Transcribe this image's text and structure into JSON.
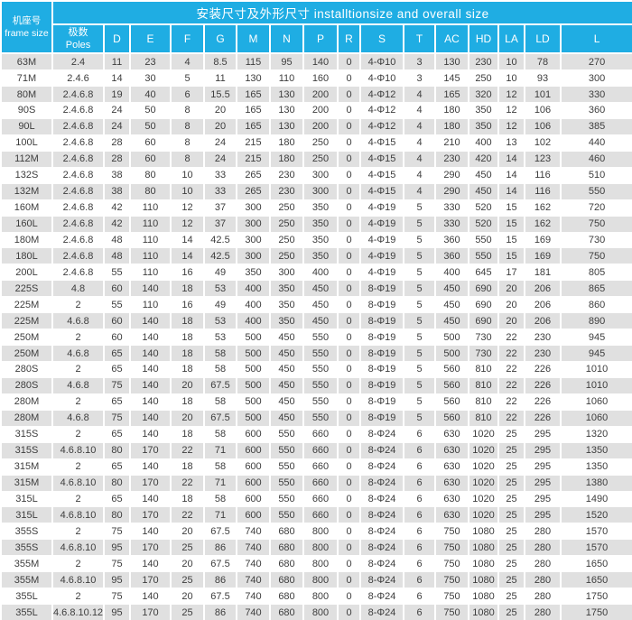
{
  "table": {
    "title": "安装尺寸及外形尺寸 installtionsize and overall size",
    "frame_header_cn": "机座号",
    "frame_header_en": "frame size",
    "poles_header_cn": "极数",
    "poles_header_en": "Poles",
    "dim_columns": [
      "D",
      "E",
      "F",
      "G",
      "M",
      "N",
      "P",
      "R",
      "S",
      "T",
      "AC",
      "HD",
      "LA",
      "LD",
      "L"
    ],
    "rows": [
      [
        "63M",
        "2.4",
        "11",
        "23",
        "4",
        "8.5",
        "115",
        "95",
        "140",
        "0",
        "4-Φ10",
        "3",
        "130",
        "230",
        "10",
        "78",
        "270"
      ],
      [
        "71M",
        "2.4.6",
        "14",
        "30",
        "5",
        "11",
        "130",
        "110",
        "160",
        "0",
        "4-Φ10",
        "3",
        "145",
        "250",
        "10",
        "93",
        "300"
      ],
      [
        "80M",
        "2.4.6.8",
        "19",
        "40",
        "6",
        "15.5",
        "165",
        "130",
        "200",
        "0",
        "4-Φ12",
        "4",
        "165",
        "320",
        "12",
        "101",
        "330"
      ],
      [
        "90S",
        "2.4.6.8",
        "24",
        "50",
        "8",
        "20",
        "165",
        "130",
        "200",
        "0",
        "4-Φ12",
        "4",
        "180",
        "350",
        "12",
        "106",
        "360"
      ],
      [
        "90L",
        "2.4.6.8",
        "24",
        "50",
        "8",
        "20",
        "165",
        "130",
        "200",
        "0",
        "4-Φ12",
        "4",
        "180",
        "350",
        "12",
        "106",
        "385"
      ],
      [
        "100L",
        "2.4.6.8",
        "28",
        "60",
        "8",
        "24",
        "215",
        "180",
        "250",
        "0",
        "4-Φ15",
        "4",
        "210",
        "400",
        "13",
        "102",
        "440"
      ],
      [
        "112M",
        "2.4.6.8",
        "28",
        "60",
        "8",
        "24",
        "215",
        "180",
        "250",
        "0",
        "4-Φ15",
        "4",
        "230",
        "420",
        "14",
        "123",
        "460"
      ],
      [
        "132S",
        "2.4.6.8",
        "38",
        "80",
        "10",
        "33",
        "265",
        "230",
        "300",
        "0",
        "4-Φ15",
        "4",
        "290",
        "450",
        "14",
        "116",
        "510"
      ],
      [
        "132M",
        "2.4.6.8",
        "38",
        "80",
        "10",
        "33",
        "265",
        "230",
        "300",
        "0",
        "4-Φ15",
        "4",
        "290",
        "450",
        "14",
        "116",
        "550"
      ],
      [
        "160M",
        "2.4.6.8",
        "42",
        "110",
        "12",
        "37",
        "300",
        "250",
        "350",
        "0",
        "4-Φ19",
        "5",
        "330",
        "520",
        "15",
        "162",
        "720"
      ],
      [
        "160L",
        "2.4.6.8",
        "42",
        "110",
        "12",
        "37",
        "300",
        "250",
        "350",
        "0",
        "4-Φ19",
        "5",
        "330",
        "520",
        "15",
        "162",
        "750"
      ],
      [
        "180M",
        "2.4.6.8",
        "48",
        "110",
        "14",
        "42.5",
        "300",
        "250",
        "350",
        "0",
        "4-Φ19",
        "5",
        "360",
        "550",
        "15",
        "169",
        "730"
      ],
      [
        "180L",
        "2.4.6.8",
        "48",
        "110",
        "14",
        "42.5",
        "300",
        "250",
        "350",
        "0",
        "4-Φ19",
        "5",
        "360",
        "550",
        "15",
        "169",
        "750"
      ],
      [
        "200L",
        "2.4.6.8",
        "55",
        "110",
        "16",
        "49",
        "350",
        "300",
        "400",
        "0",
        "4-Φ19",
        "5",
        "400",
        "645",
        "17",
        "181",
        "805"
      ],
      [
        "225S",
        "4.8",
        "60",
        "140",
        "18",
        "53",
        "400",
        "350",
        "450",
        "0",
        "8-Φ19",
        "5",
        "450",
        "690",
        "20",
        "206",
        "865"
      ],
      [
        "225M",
        "2",
        "55",
        "110",
        "16",
        "49",
        "400",
        "350",
        "450",
        "0",
        "8-Φ19",
        "5",
        "450",
        "690",
        "20",
        "206",
        "860"
      ],
      [
        "225M",
        "4.6.8",
        "60",
        "140",
        "18",
        "53",
        "400",
        "350",
        "450",
        "0",
        "8-Φ19",
        "5",
        "450",
        "690",
        "20",
        "206",
        "890"
      ],
      [
        "250M",
        "2",
        "60",
        "140",
        "18",
        "53",
        "500",
        "450",
        "550",
        "0",
        "8-Φ19",
        "5",
        "500",
        "730",
        "22",
        "230",
        "945"
      ],
      [
        "250M",
        "4.6.8",
        "65",
        "140",
        "18",
        "58",
        "500",
        "450",
        "550",
        "0",
        "8-Φ19",
        "5",
        "500",
        "730",
        "22",
        "230",
        "945"
      ],
      [
        "280S",
        "2",
        "65",
        "140",
        "18",
        "58",
        "500",
        "450",
        "550",
        "0",
        "8-Φ19",
        "5",
        "560",
        "810",
        "22",
        "226",
        "1010"
      ],
      [
        "280S",
        "4.6.8",
        "75",
        "140",
        "20",
        "67.5",
        "500",
        "450",
        "550",
        "0",
        "8-Φ19",
        "5",
        "560",
        "810",
        "22",
        "226",
        "1010"
      ],
      [
        "280M",
        "2",
        "65",
        "140",
        "18",
        "58",
        "500",
        "450",
        "550",
        "0",
        "8-Φ19",
        "5",
        "560",
        "810",
        "22",
        "226",
        "1060"
      ],
      [
        "280M",
        "4.6.8",
        "75",
        "140",
        "20",
        "67.5",
        "500",
        "450",
        "550",
        "0",
        "8-Φ19",
        "5",
        "560",
        "810",
        "22",
        "226",
        "1060"
      ],
      [
        "315S",
        "2",
        "65",
        "140",
        "18",
        "58",
        "600",
        "550",
        "660",
        "0",
        "8-Φ24",
        "6",
        "630",
        "1020",
        "25",
        "295",
        "1320"
      ],
      [
        "315S",
        "4.6.8.10",
        "80",
        "170",
        "22",
        "71",
        "600",
        "550",
        "660",
        "0",
        "8-Φ24",
        "6",
        "630",
        "1020",
        "25",
        "295",
        "1350"
      ],
      [
        "315M",
        "2",
        "65",
        "140",
        "18",
        "58",
        "600",
        "550",
        "660",
        "0",
        "8-Φ24",
        "6",
        "630",
        "1020",
        "25",
        "295",
        "1350"
      ],
      [
        "315M",
        "4.6.8.10",
        "80",
        "170",
        "22",
        "71",
        "600",
        "550",
        "660",
        "0",
        "8-Φ24",
        "6",
        "630",
        "1020",
        "25",
        "295",
        "1380"
      ],
      [
        "315L",
        "2",
        "65",
        "140",
        "18",
        "58",
        "600",
        "550",
        "660",
        "0",
        "8-Φ24",
        "6",
        "630",
        "1020",
        "25",
        "295",
        "1490"
      ],
      [
        "315L",
        "4.6.8.10",
        "80",
        "170",
        "22",
        "71",
        "600",
        "550",
        "660",
        "0",
        "8-Φ24",
        "6",
        "630",
        "1020",
        "25",
        "295",
        "1520"
      ],
      [
        "355S",
        "2",
        "75",
        "140",
        "20",
        "67.5",
        "740",
        "680",
        "800",
        "0",
        "8-Φ24",
        "6",
        "750",
        "1080",
        "25",
        "280",
        "1570"
      ],
      [
        "355S",
        "4.6.8.10",
        "95",
        "170",
        "25",
        "86",
        "740",
        "680",
        "800",
        "0",
        "8-Φ24",
        "6",
        "750",
        "1080",
        "25",
        "280",
        "1570"
      ],
      [
        "355M",
        "2",
        "75",
        "140",
        "20",
        "67.5",
        "740",
        "680",
        "800",
        "0",
        "8-Φ24",
        "6",
        "750",
        "1080",
        "25",
        "280",
        "1650"
      ],
      [
        "355M",
        "4.6.8.10",
        "95",
        "170",
        "25",
        "86",
        "740",
        "680",
        "800",
        "0",
        "8-Φ24",
        "6",
        "750",
        "1080",
        "25",
        "280",
        "1650"
      ],
      [
        "355L",
        "2",
        "75",
        "140",
        "20",
        "67.5",
        "740",
        "680",
        "800",
        "0",
        "8-Φ24",
        "6",
        "750",
        "1080",
        "25",
        "280",
        "1750"
      ],
      [
        "355L",
        "4.6.8.10.12",
        "95",
        "170",
        "25",
        "86",
        "740",
        "680",
        "800",
        "0",
        "8-Φ24",
        "6",
        "750",
        "1080",
        "25",
        "280",
        "1750"
      ]
    ]
  },
  "colors": {
    "header_bg": "#1fade3",
    "header_text": "#ffffff",
    "row_alt_bg": "#e0e0e0",
    "row_bg": "#ffffff",
    "cell_text": "#3d3d3d"
  }
}
